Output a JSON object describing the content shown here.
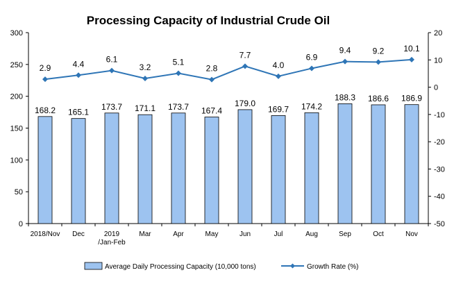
{
  "chart_data": {
    "type": "bar",
    "title": "Processing Capacity of Industrial Crude Oil",
    "categories": [
      [
        "2018/Nov"
      ],
      [
        "Dec"
      ],
      [
        "2019",
        "/Jan-Feb"
      ],
      [
        "Mar"
      ],
      [
        "Apr"
      ],
      [
        "May"
      ],
      [
        "Jun"
      ],
      [
        "Jul"
      ],
      [
        "Aug"
      ],
      [
        "Sep"
      ],
      [
        "Oct"
      ],
      [
        "Nov"
      ]
    ],
    "series": [
      {
        "name": "Average Daily Processing Capacity (10,000 tons)",
        "type": "bar",
        "axis": "left",
        "color": "#9DC3F0",
        "values": [
          168.2,
          165.1,
          173.7,
          171.1,
          173.7,
          167.4,
          179.0,
          169.7,
          174.2,
          188.3,
          186.6,
          186.9
        ],
        "labels": [
          "168.2",
          "165.1",
          "173.7",
          "171.1",
          "173.7",
          "167.4",
          "179.0",
          "169.7",
          "174.2",
          "188.3",
          "186.6",
          "186.9"
        ]
      },
      {
        "name": "Growth Rate (%)",
        "type": "line",
        "axis": "right",
        "color": "#2E75B6",
        "values": [
          2.9,
          4.4,
          6.1,
          3.2,
          5.1,
          2.8,
          7.7,
          4.0,
          6.9,
          9.4,
          9.2,
          10.1
        ],
        "labels": [
          "2.9",
          "4.4",
          "6.1",
          "3.2",
          "5.1",
          "2.8",
          "7.7",
          "4.0",
          "6.9",
          "9.4",
          "9.2",
          "10.1"
        ]
      }
    ],
    "y_left": {
      "min": 0,
      "max": 300,
      "ticks": [
        "0",
        "50",
        "100",
        "150",
        "200",
        "250",
        "300"
      ]
    },
    "y_right": {
      "min": -50,
      "max": 20,
      "ticks": [
        "-50",
        "-40",
        "-30",
        "-20",
        "-10",
        "0",
        "10",
        "20"
      ]
    },
    "grid": false,
    "legend": "bottom"
  }
}
